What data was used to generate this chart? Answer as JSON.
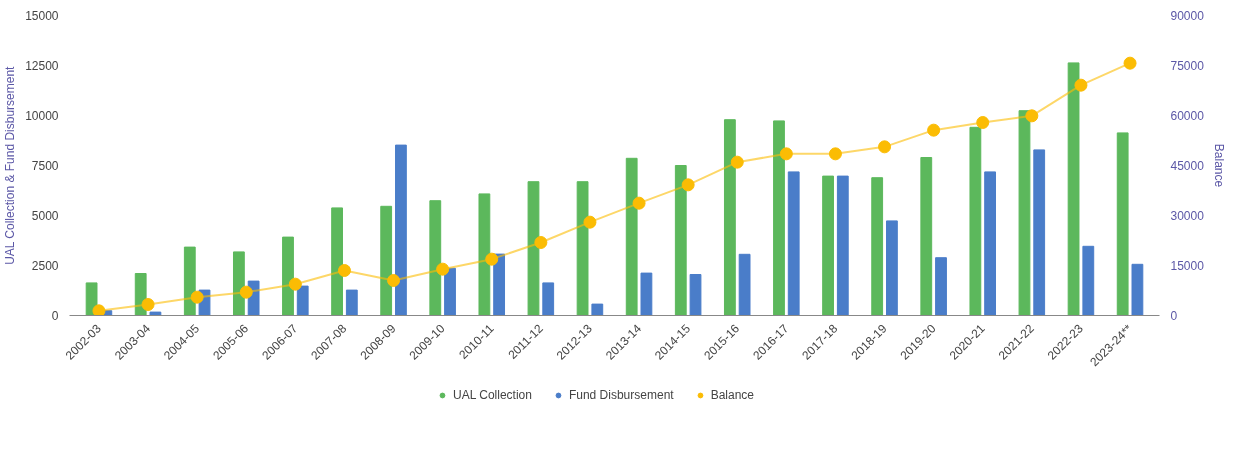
{
  "chart_data": {
    "type": "bar",
    "ylabel": "UAL Collection & Fund Disbursement",
    "y2label": "Balance",
    "categories": [
      "2002-03",
      "2003-04",
      "2004-05",
      "2005-06",
      "2006-07",
      "2007-08",
      "2008-09",
      "2009-10",
      "2010-11",
      "2011-12",
      "2012-13",
      "2013-14",
      "2014-15",
      "2015-16",
      "2016-17",
      "2017-18",
      "2018-19",
      "2019-20",
      "2020-21",
      "2021-22",
      "2022-23",
      "2023-24**"
    ],
    "series": [
      {
        "name": "UAL Collection",
        "color": "#5cb85c",
        "values": [
          1630,
          2100,
          3420,
          3180,
          3920,
          5380,
          5460,
          5740,
          6080,
          6690,
          6690,
          7860,
          7500,
          9790,
          9730,
          6970,
          6890,
          7900,
          9410,
          10240,
          12630,
          9130
        ]
      },
      {
        "name": "Fund Disbursement",
        "color": "#4a7dc9",
        "values": [
          240,
          170,
          1270,
          1720,
          1470,
          1270,
          8520,
          2360,
          3070,
          1630,
          570,
          2120,
          2050,
          3060,
          7180,
          6970,
          4730,
          2890,
          7180,
          8280,
          3460,
          2560
        ]
      },
      {
        "name": "Balance",
        "type": "line",
        "axis": "y2",
        "color": "#fbbc04",
        "values": [
          1400,
          3300,
          5500,
          7000,
          9400,
          13500,
          10500,
          13900,
          16900,
          21900,
          28000,
          33700,
          39200,
          46000,
          48500,
          48500,
          50600,
          55600,
          57900,
          59900,
          69100,
          75700
        ]
      }
    ],
    "ylim": [
      0,
      15000
    ],
    "yticks": [
      0,
      2500,
      5000,
      7500,
      10000,
      12500,
      15000
    ],
    "y2lim": [
      0,
      90000
    ],
    "y2ticks": [
      0,
      15000,
      30000,
      45000,
      60000,
      75000,
      90000
    ],
    "grid": false,
    "legend": "bottom",
    "marker": "circle"
  }
}
